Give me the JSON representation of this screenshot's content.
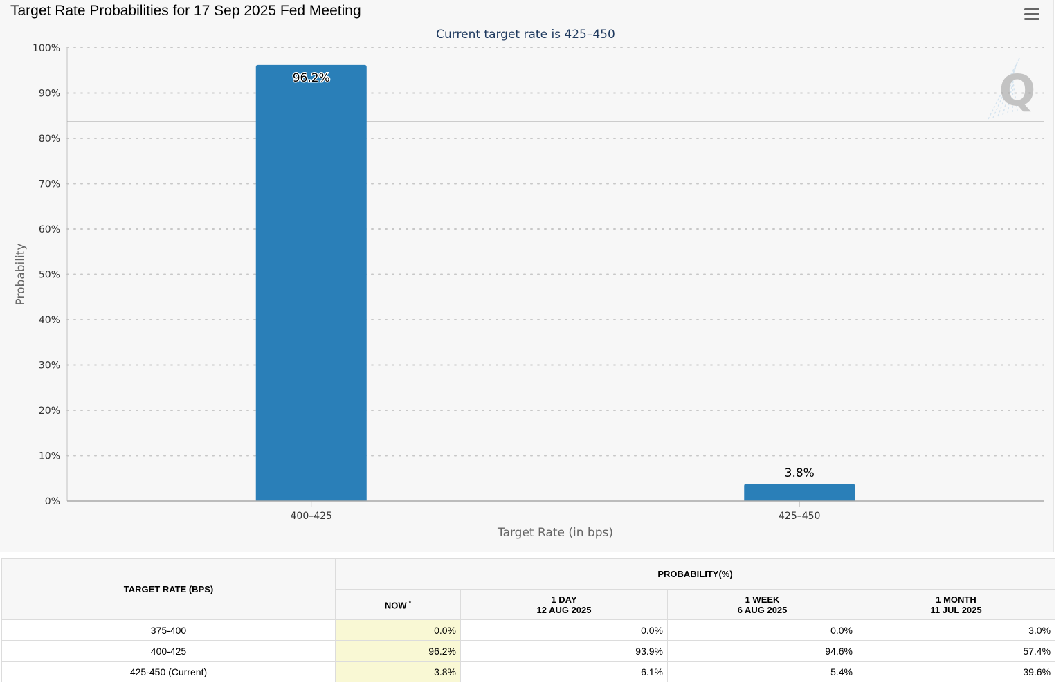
{
  "title": "Target Rate Probabilities for 17 Sep 2025 Fed Meeting",
  "menu_icon": "hamburger-menu-icon",
  "colors": {
    "bar": "#2a7fb8",
    "panel_bg": "#f7f7f7",
    "now_column": "#f9f8d4",
    "subtitle": "#1f3a5f"
  },
  "chart_data": {
    "type": "bar",
    "subtitle": "Current target rate is 425–450",
    "categories": [
      "400–425",
      "425–450"
    ],
    "values": [
      96.2,
      3.8
    ],
    "data_labels": [
      "96.2%",
      "3.8%"
    ],
    "xlabel": "Target Rate (in bps)",
    "ylabel": "Probability",
    "ylim": [
      0,
      100
    ],
    "yticks": [
      "0%",
      "10%",
      "20%",
      "30%",
      "40%",
      "50%",
      "60%",
      "70%",
      "80%",
      "90%",
      "100%"
    ],
    "grid": true,
    "watermark": "Q"
  },
  "table": {
    "rate_header": "TARGET RATE (BPS)",
    "prob_header": "PROBABILITY(%)",
    "columns": [
      {
        "label": "NOW",
        "marker": "*",
        "date": ""
      },
      {
        "label": "1 DAY",
        "date": "12 AUG 2025"
      },
      {
        "label": "1 WEEK",
        "date": "6 AUG 2025"
      },
      {
        "label": "1 MONTH",
        "date": "11 JUL 2025"
      }
    ],
    "rows": [
      {
        "rate": "375-400",
        "now": "0.0%",
        "day": "0.0%",
        "week": "0.0%",
        "month": "3.0%"
      },
      {
        "rate": "400-425",
        "now": "96.2%",
        "day": "93.9%",
        "week": "94.6%",
        "month": "57.4%"
      },
      {
        "rate": "425-450 (Current)",
        "now": "3.8%",
        "day": "6.1%",
        "week": "5.4%",
        "month": "39.6%"
      }
    ]
  }
}
